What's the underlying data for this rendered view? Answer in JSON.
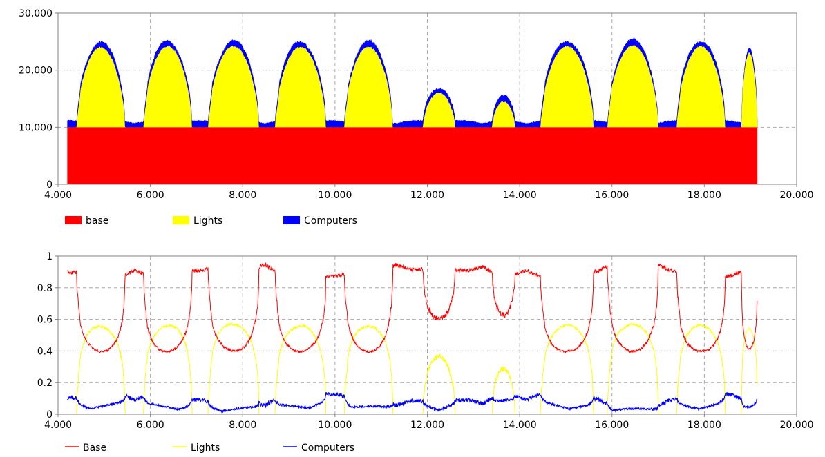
{
  "chart_data": [
    {
      "type": "area",
      "stacked": true,
      "xlim": [
        4000,
        20000
      ],
      "ylim": [
        0,
        30000
      ],
      "x_ticks": [
        "4.000",
        "6.000",
        "8.000",
        "10.000",
        "12.000",
        "14.000",
        "16.000",
        "18.000",
        "20.000"
      ],
      "y_ticks": [
        "0",
        "10,000",
        "20,000",
        "30,000"
      ],
      "grid": true,
      "legend_position": "bottom-left",
      "series": [
        {
          "name": "base",
          "color": "#ff0000",
          "description": "constant 10,000 from x=4,200 to x=19,150"
        },
        {
          "name": "Lights",
          "color": "#ffff00",
          "description": "daily pulses peaking near 14,000 above base"
        },
        {
          "name": "Computers",
          "color": "#0000ff",
          "description": "thin band ~800-1,200 on top of base+lights"
        }
      ],
      "x_range_data": [
        4200,
        19150
      ],
      "base_value": 10000,
      "light_pulses": [
        {
          "start": 4400,
          "end": 5450,
          "peak": 14000
        },
        {
          "start": 5850,
          "end": 6900,
          "peak": 14200
        },
        {
          "start": 7250,
          "end": 8350,
          "peak": 14200
        },
        {
          "start": 8700,
          "end": 9800,
          "peak": 14100
        },
        {
          "start": 10200,
          "end": 11250,
          "peak": 14100
        },
        {
          "start": 11900,
          "end": 12600,
          "peak": 6000
        },
        {
          "start": 13400,
          "end": 13900,
          "peak": 4500
        },
        {
          "start": 14450,
          "end": 15600,
          "peak": 14200
        },
        {
          "start": 15900,
          "end": 17000,
          "peak": 14300
        },
        {
          "start": 17400,
          "end": 18450,
          "peak": 14200
        },
        {
          "start": 18800,
          "end": 19150,
          "peak": 13000
        }
      ]
    },
    {
      "type": "line",
      "xlim": [
        4000,
        20000
      ],
      "ylim": [
        0,
        1
      ],
      "x_ticks": [
        "4.000",
        "6.000",
        "8.000",
        "10.000",
        "12.000",
        "14.000",
        "16.000",
        "18.000",
        "20.000"
      ],
      "y_ticks": [
        "0",
        "0.2",
        "0.4",
        "0.6",
        "0.8",
        "1"
      ],
      "grid": true,
      "legend_position": "bottom-left",
      "series": [
        {
          "name": "Base",
          "color": "#ff0000",
          "description": "share of base: ~0.9 between pulses, ~0.41 at pulse peaks"
        },
        {
          "name": "Lights",
          "color": "#ffff00",
          "description": "share of lights: ~0.55 at pulse peaks, 0 between"
        },
        {
          "name": "Computers",
          "color": "#0000ff",
          "description": "share of computers: ~0.05-0.12"
        }
      ]
    }
  ],
  "legend1": [
    {
      "label": "base",
      "color": "#ff0000"
    },
    {
      "label": "Lights",
      "color": "#ffff00"
    },
    {
      "label": "Computers",
      "color": "#0000ff"
    }
  ],
  "legend2": [
    {
      "label": "Base",
      "color": "#ff0000"
    },
    {
      "label": "Lights",
      "color": "#ffff00"
    },
    {
      "label": "Computers",
      "color": "#0000ff"
    }
  ]
}
